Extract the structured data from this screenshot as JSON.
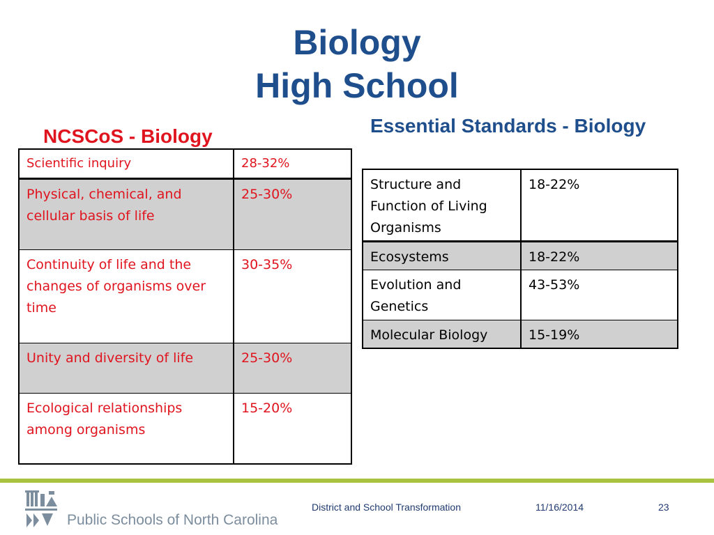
{
  "title": {
    "line1": "Biology",
    "line2": "High School"
  },
  "left_section": {
    "heading": "NCSCoS - Biology",
    "rows": [
      {
        "topic": "Scientific inquiry",
        "percent": "28-32%"
      },
      {
        "topic": "Physical, chemical, and cellular basis of life",
        "percent": "25-30%"
      },
      {
        "topic": "Continuity of life and the changes of organisms over time",
        "percent": "30-35%"
      },
      {
        "topic": "Unity and diversity of life",
        "percent": "25-30%"
      },
      {
        "topic": "Ecological relationships among organisms",
        "percent": "15-20%"
      }
    ]
  },
  "right_section": {
    "heading": "Essential Standards - Biology",
    "rows": [
      {
        "topic": "Structure and Function of Living Organisms",
        "percent": "18-22%"
      },
      {
        "topic": "Ecosystems",
        "percent": "18-22%"
      },
      {
        "topic": "Evolution and Genetics",
        "percent": "43-53%"
      },
      {
        "topic": "Molecular Biology",
        "percent": "15-19%"
      }
    ]
  },
  "footer": {
    "org_name": "Public Schools of North Carolina",
    "department": "District and School Transformation",
    "date": "11/16/2014",
    "page_number": "23",
    "logo_icon": "nc-capitol-logo-icon"
  },
  "colors": {
    "title_blue": "#1f4e8c",
    "heading_red": "#e0141e",
    "row_shade": "#d0d0d0",
    "footer_green": "#a9c23f",
    "org_gray": "#7c8d9e"
  }
}
